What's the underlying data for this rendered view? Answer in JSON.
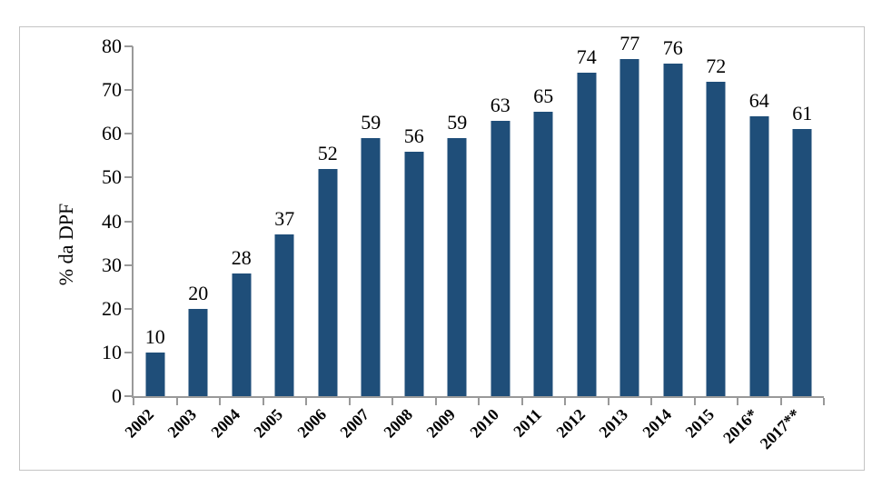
{
  "chart_data": {
    "type": "bar",
    "title": "",
    "ylabel": "% da DPF",
    "xlabel": "",
    "categories": [
      "2002",
      "2003",
      "2004",
      "2005",
      "2006",
      "2007",
      "2008",
      "2009",
      "2010",
      "2011",
      "2012",
      "2013",
      "2014",
      "2015",
      "2016*",
      "2017**"
    ],
    "values": [
      10,
      20,
      28,
      37,
      52,
      59,
      56,
      59,
      63,
      65,
      74,
      77,
      76,
      72,
      64,
      61
    ],
    "ylim": [
      0,
      80
    ],
    "yticks": [
      0,
      10,
      20,
      30,
      40,
      50,
      60,
      70,
      80
    ],
    "grid": false,
    "legend": false,
    "data_labels": true,
    "bar_color": "#1F4E79",
    "axis_color": "#999999",
    "text_color": "#000000",
    "frame_border_color": "#C4C4C4",
    "background": "#FFFFFF"
  }
}
